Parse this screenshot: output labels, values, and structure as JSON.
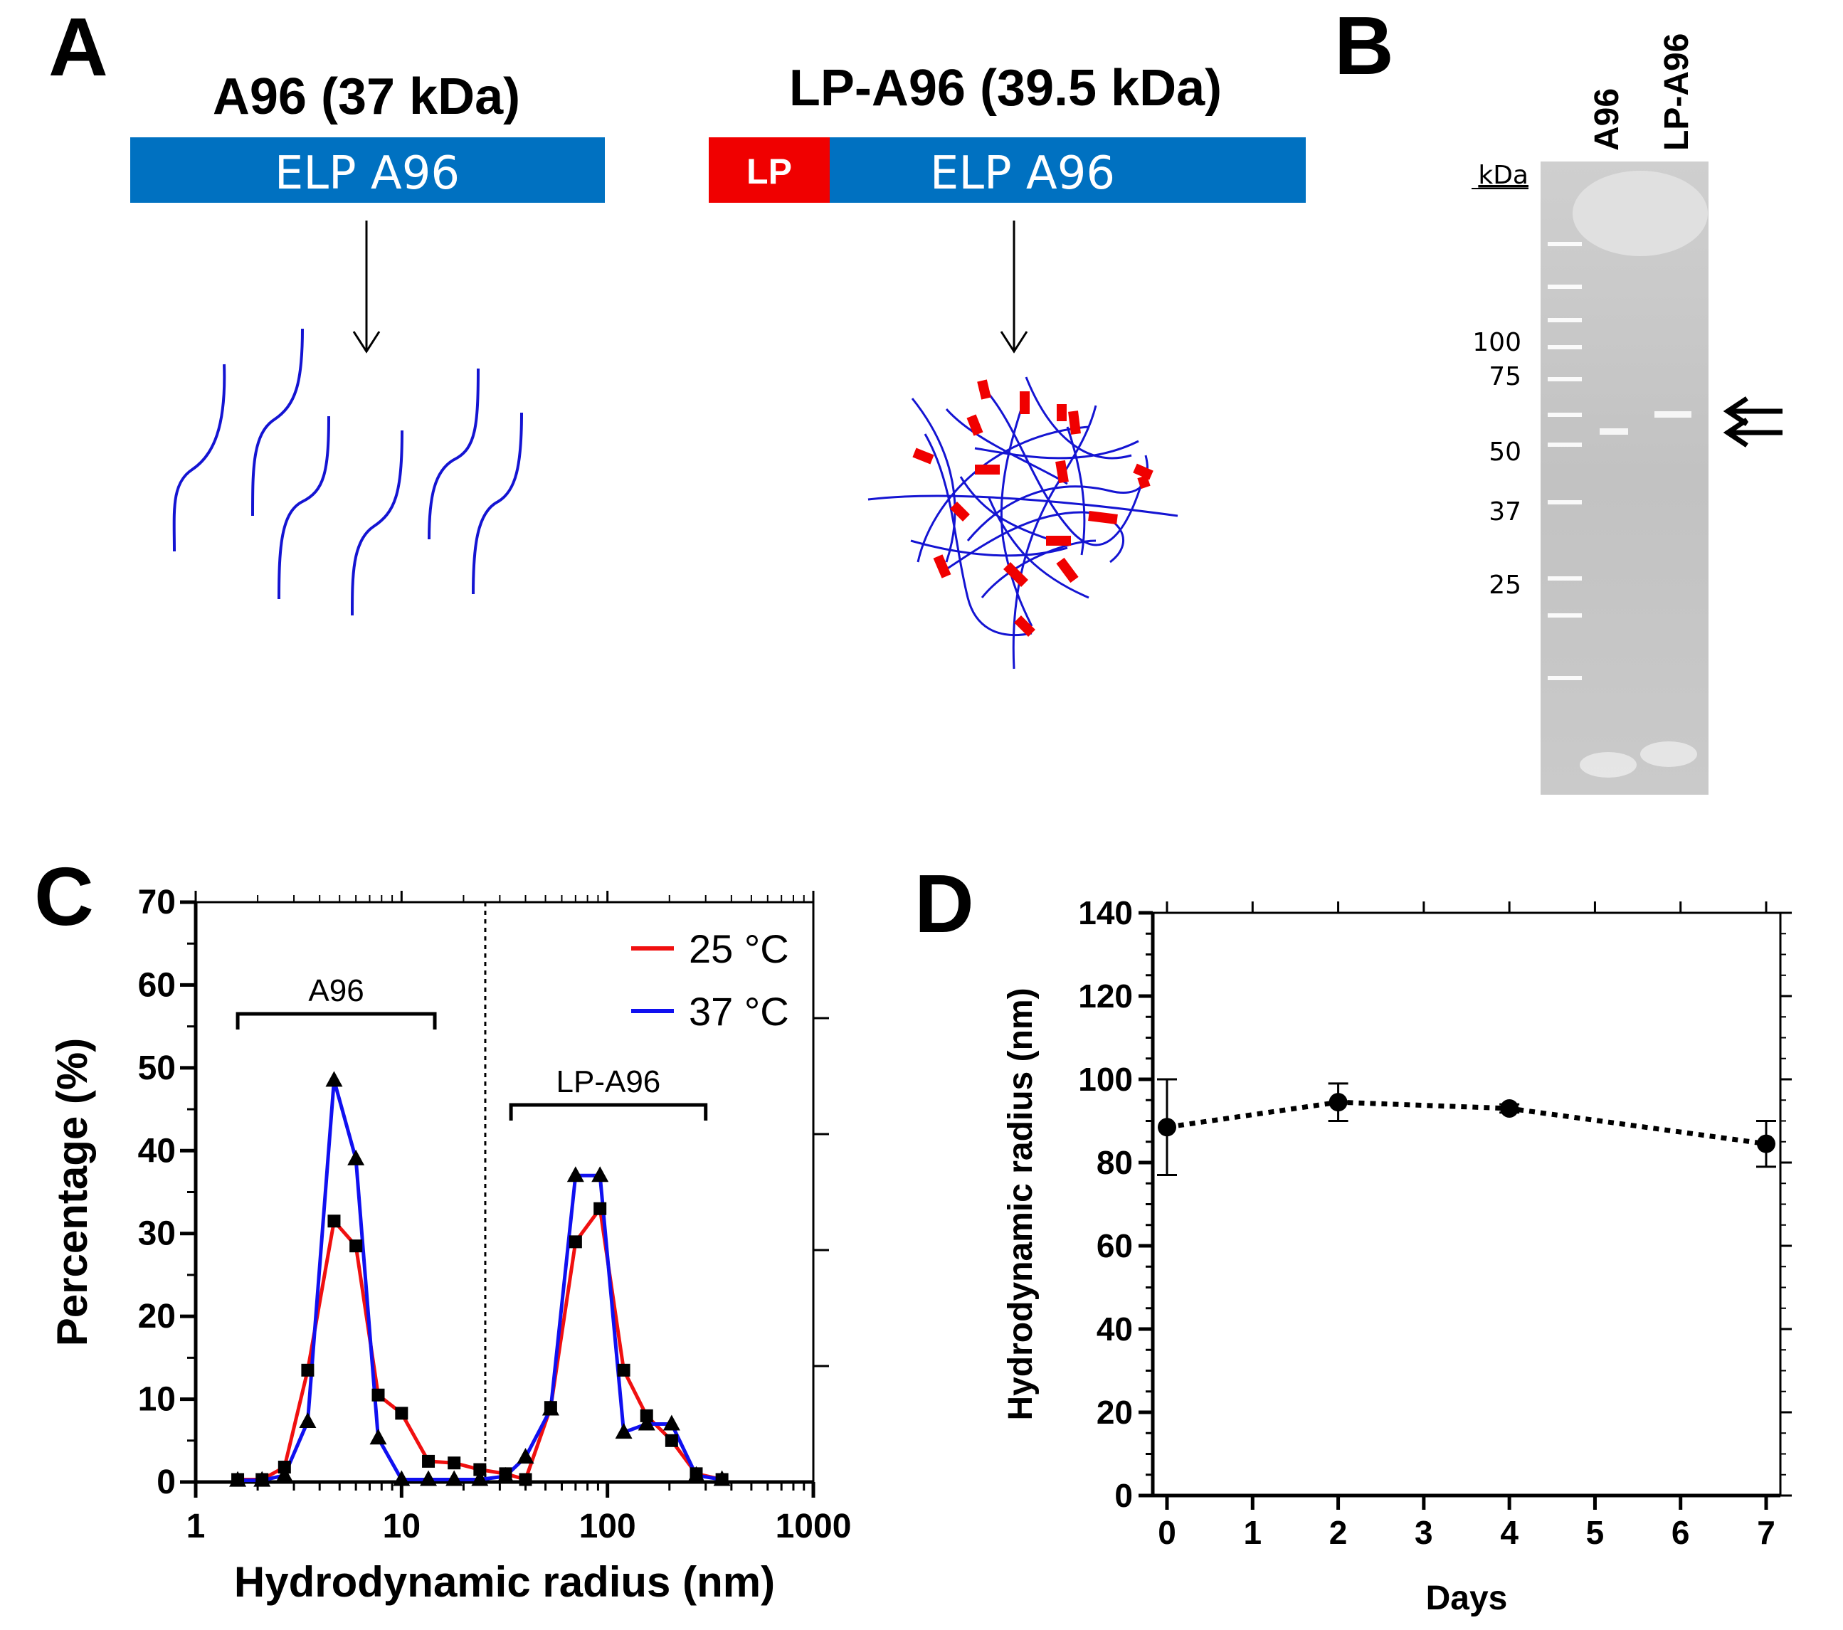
{
  "panels": {
    "a": {
      "letter": "A",
      "construct1": {
        "title": "A96 (37 kDa)",
        "bar_label": "ELP A96"
      },
      "construct2": {
        "title": "LP-A96 (39.5 kDa)",
        "tag_label": "LP",
        "bar_label": "ELP A96"
      },
      "colors": {
        "elp": "#0071C1",
        "lp": "#F00000",
        "chain": "#1414D2"
      }
    },
    "b": {
      "letter": "B",
      "lanes": [
        "A96",
        "LP-A96"
      ],
      "marker_unit": "kDa",
      "markers": [
        "100",
        "75",
        "50",
        "37",
        "25"
      ]
    },
    "c": {
      "letter": "C"
    },
    "d": {
      "letter": "D"
    }
  },
  "chart_data": [
    {
      "id": "C",
      "type": "line",
      "xscale": "log",
      "xlim": [
        1,
        1000
      ],
      "ylim": [
        0,
        70
      ],
      "xticks": [
        "1",
        "10",
        "100",
        "1000"
      ],
      "yticks": [
        "0",
        "10",
        "20",
        "30",
        "40",
        "50",
        "60",
        "70"
      ],
      "xlabel": "Hydrodynamic radius (nm)",
      "ylabel": "Percentage (%)",
      "divider_x": 25.5,
      "annotations": [
        {
          "label": "A96",
          "x_range": [
            1.6,
            14.5
          ]
        },
        {
          "label": "LP-A96",
          "x_range": [
            34,
            300
          ]
        }
      ],
      "series": [
        {
          "name": "25 °C",
          "color": "#F01010",
          "marker": "square",
          "x": [
            1.6,
            2.1,
            2.7,
            3.5,
            4.7,
            6.0,
            7.7,
            10.0,
            13.5,
            18.0,
            24.0,
            32.0,
            40.0,
            53.0,
            70.0,
            92.0,
            120.0,
            155.0,
            205.0,
            270.0,
            360.0
          ],
          "y": [
            0.3,
            0.3,
            1.8,
            13.5,
            31.5,
            28.5,
            10.5,
            8.3,
            2.5,
            2.3,
            1.5,
            1.0,
            0.3,
            9.0,
            29.0,
            33.0,
            13.5,
            8.0,
            5.0,
            1.0,
            0.3
          ]
        },
        {
          "name": "37 °C",
          "color": "#1010F0",
          "marker": "triangle",
          "x": [
            1.6,
            2.1,
            2.7,
            3.5,
            4.7,
            6.0,
            7.7,
            10.0,
            13.5,
            18.0,
            24.0,
            32.0,
            40.0,
            53.0,
            70.0,
            92.0,
            120.0,
            155.0,
            205.0,
            270.0,
            360.0
          ],
          "y": [
            0.2,
            0.2,
            0.8,
            7.3,
            48.5,
            39.0,
            5.3,
            0.3,
            0.3,
            0.3,
            0.3,
            0.7,
            3.0,
            8.8,
            37.0,
            37.0,
            6.0,
            7.0,
            7.0,
            0.8,
            0.3
          ]
        }
      ]
    },
    {
      "id": "D",
      "type": "line",
      "xlim": [
        0,
        7
      ],
      "ylim": [
        0,
        140
      ],
      "xticks": [
        "0",
        "1",
        "2",
        "3",
        "4",
        "5",
        "6",
        "7"
      ],
      "yticks": [
        "0",
        "20",
        "40",
        "60",
        "80",
        "100",
        "120",
        "140"
      ],
      "xlabel": "Days",
      "ylabel": "Hydrodynamic radius (nm)",
      "series": [
        {
          "name": "Hydrodynamic radius",
          "color": "#000000",
          "line": "dotted",
          "x": [
            0,
            2,
            4,
            7
          ],
          "y": [
            88.5,
            94.5,
            93.0,
            84.5
          ],
          "err": [
            11.5,
            4.5,
            1.0,
            5.5
          ]
        }
      ]
    }
  ]
}
